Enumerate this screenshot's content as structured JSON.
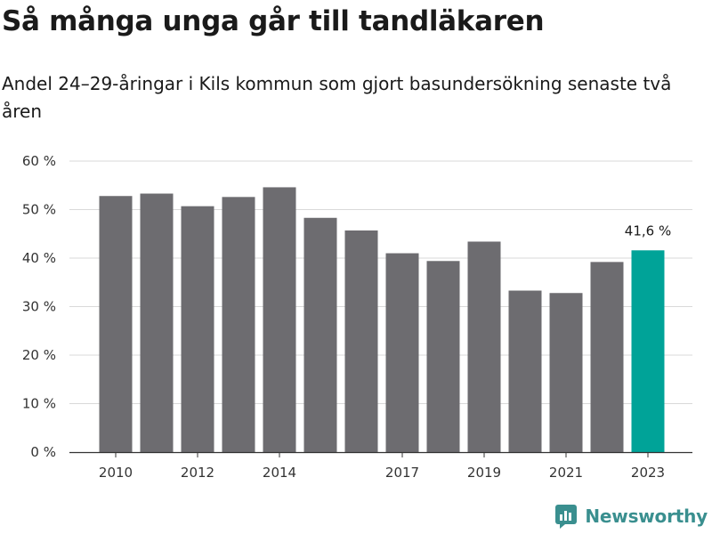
{
  "title": "Så många unga går till tandläkaren",
  "subtitle": "Andel 24–29-åringar i Kils kommun som gjort basundersökning senaste två åren",
  "logo_text": "Newsworthy",
  "colors": {
    "bar": "#6d6c70",
    "highlight": "#00a398",
    "grid": "#d9d9d9",
    "axis": "#333333",
    "logo": "#3a8f8f"
  },
  "chart_data": {
    "type": "bar",
    "title": "Så många unga går till tandläkaren",
    "categories": [
      "2010",
      "2011",
      "2012",
      "2013",
      "2014",
      "2015",
      "2016",
      "2017",
      "2018",
      "2019",
      "2020",
      "2021",
      "2022",
      "2023"
    ],
    "values": [
      52.8,
      53.3,
      50.7,
      52.6,
      54.6,
      48.3,
      45.7,
      41.0,
      39.4,
      43.4,
      33.3,
      32.8,
      39.2,
      41.6
    ],
    "x_tick_labels": [
      "2010",
      "2012",
      "2014",
      "2017",
      "2019",
      "2021",
      "2023"
    ],
    "y_ticks": [
      0,
      10,
      20,
      30,
      40,
      50,
      60
    ],
    "y_tick_labels": [
      "0 %",
      "10 %",
      "20 %",
      "30 %",
      "40 %",
      "50 %",
      "60 %"
    ],
    "ylim": [
      0,
      60
    ],
    "xlabel": "",
    "ylabel": "",
    "grid": true,
    "highlight_category": "2023",
    "annotation": "41,6 %"
  }
}
